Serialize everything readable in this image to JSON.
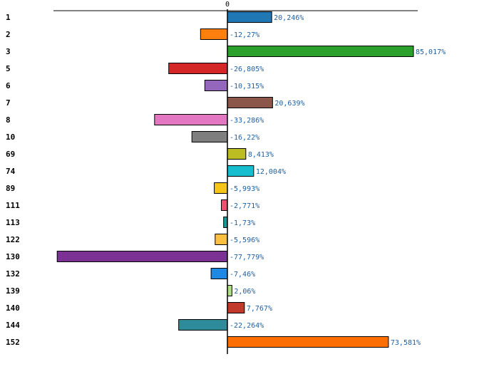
{
  "chart_data": {
    "type": "bar",
    "orientation": "horizontal",
    "title": "",
    "xlabel": "",
    "ylabel": "",
    "zero_label": "0",
    "xlim": [
      -100,
      110
    ],
    "grid": false,
    "categories": [
      "1",
      "2",
      "3",
      "5",
      "6",
      "7",
      "8",
      "10",
      "69",
      "74",
      "89",
      "111",
      "113",
      "122",
      "130",
      "132",
      "139",
      "140",
      "144",
      "152"
    ],
    "values": [
      20.246,
      -12.27,
      85.017,
      -26.805,
      -10.315,
      20.639,
      -33.286,
      -16.22,
      8.413,
      12.004,
      -5.993,
      -2.771,
      -1.73,
      -5.596,
      -77.779,
      -7.46,
      2.06,
      7.767,
      -22.264,
      73.581
    ],
    "value_labels": [
      "20,246%",
      "-12,27%",
      "85,017%",
      "-26,805%",
      "-10,315%",
      "20,639%",
      "-33,286%",
      "-16,22%",
      "8,413%",
      "12,004%",
      "-5,993%",
      "-2,771%",
      "-1,73%",
      "-5,596%",
      "-77,779%",
      "-7,46%",
      "2,06%",
      "7,767%",
      "-22,264%",
      "73,581%"
    ],
    "colors": [
      "#1f77b4",
      "#ff7f0e",
      "#2ca02c",
      "#d62728",
      "#9467bd",
      "#8c564b",
      "#e377c2",
      "#7f7f7f",
      "#bcbd22",
      "#17becf",
      "#f5c518",
      "#f0506e",
      "#179a9a",
      "#ffbf40",
      "#7b3294",
      "#1e88e5",
      "#b2df8a",
      "#c0392b",
      "#2e8b9a",
      "#ff6f00"
    ],
    "value_label_color": "#1f5f9f"
  }
}
